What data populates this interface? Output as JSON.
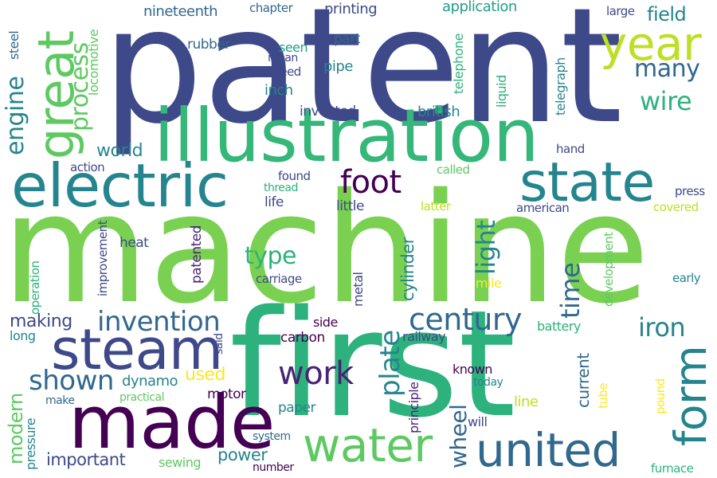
{
  "colors": {
    "background": "#ffffff",
    "palette": [
      "#3e4989",
      "#25858e",
      "#2db27d",
      "#5ec962",
      "#7ad151",
      "#440154",
      "#31688e",
      "#fde725",
      "#bddf26",
      "#482475",
      "#1f9e89",
      "#35b779"
    ]
  },
  "words": [
    {
      "id": "patent",
      "text": "patent",
      "color": "#3e4989"
    },
    {
      "id": "machine",
      "text": "machine",
      "color": "#7ad151"
    },
    {
      "id": "first",
      "text": "first",
      "color": "#2db27d"
    },
    {
      "id": "illustration",
      "text": "illustration",
      "color": "#35b779"
    },
    {
      "id": "made",
      "text": "made",
      "color": "#440154"
    },
    {
      "id": "electric",
      "text": "electric",
      "color": "#25858e"
    },
    {
      "id": "steam",
      "text": "steam",
      "color": "#3e4989"
    },
    {
      "id": "state",
      "text": "state",
      "color": "#25858e"
    },
    {
      "id": "great",
      "text": "great",
      "color": "#5ec962"
    },
    {
      "id": "year",
      "text": "year",
      "color": "#bddf26"
    },
    {
      "id": "water",
      "text": "water",
      "color": "#5ec962"
    },
    {
      "id": "united",
      "text": "united",
      "color": "#31688e"
    },
    {
      "id": "form",
      "text": "form",
      "color": "#25858e"
    },
    {
      "id": "work",
      "text": "work",
      "color": "#482475"
    },
    {
      "id": "foot",
      "text": "foot",
      "color": "#440154"
    },
    {
      "id": "invention",
      "text": "invention",
      "color": "#31688e"
    },
    {
      "id": "century",
      "text": "century",
      "color": "#31688e"
    },
    {
      "id": "process",
      "text": "process",
      "color": "#5ec962"
    },
    {
      "id": "engine",
      "text": "engine",
      "color": "#25858e"
    },
    {
      "id": "many",
      "text": "many",
      "color": "#31688e"
    },
    {
      "id": "wire",
      "text": "wire",
      "color": "#2db27d"
    },
    {
      "id": "shown",
      "text": "shown",
      "color": "#31688e"
    },
    {
      "id": "plate",
      "text": "plate",
      "color": "#25858e"
    },
    {
      "id": "iron",
      "text": "iron",
      "color": "#25858e"
    },
    {
      "id": "type",
      "text": "type",
      "color": "#2db27d"
    },
    {
      "id": "light",
      "text": "light",
      "color": "#25858e"
    },
    {
      "id": "time",
      "text": "time",
      "color": "#31688e"
    },
    {
      "id": "modern",
      "text": "modern",
      "color": "#5ec962"
    },
    {
      "id": "wheel",
      "text": "wheel",
      "color": "#31688e"
    },
    {
      "id": "field",
      "text": "field",
      "color": "#25858e"
    },
    {
      "id": "world",
      "text": "world",
      "color": "#25858e"
    },
    {
      "id": "used",
      "text": "used",
      "color": "#fde725"
    },
    {
      "id": "making",
      "text": "making",
      "color": "#3e4989"
    },
    {
      "id": "important",
      "text": "important",
      "color": "#3e4989"
    },
    {
      "id": "power",
      "text": "power",
      "color": "#25858e"
    },
    {
      "id": "cylinder",
      "text": "cylinder",
      "color": "#25858e"
    },
    {
      "id": "current",
      "text": "current",
      "color": "#31688e"
    },
    {
      "id": "dynamo",
      "text": "dynamo",
      "color": "#25858e"
    },
    {
      "id": "nineteenth",
      "text": "nineteenth",
      "color": "#31688e"
    },
    {
      "id": "printing",
      "text": "printing",
      "color": "#3e4989"
    },
    {
      "id": "application",
      "text": "application",
      "color": "#1f9e89"
    },
    {
      "id": "chapter",
      "text": "chapter",
      "color": "#31688e"
    },
    {
      "id": "large",
      "text": "large",
      "color": "#3e4989"
    },
    {
      "id": "rubber",
      "text": "rubber",
      "color": "#31688e"
    },
    {
      "id": "part",
      "text": "part",
      "color": "#31688e"
    },
    {
      "id": "seen",
      "text": "seen",
      "color": "#1f9e89"
    },
    {
      "id": "mean",
      "text": "mean",
      "color": "#3e4989"
    },
    {
      "id": "speed",
      "text": "speed",
      "color": "#3e4989"
    },
    {
      "id": "pipe",
      "text": "pipe",
      "color": "#25858e"
    },
    {
      "id": "inch",
      "text": "inch",
      "color": "#25858e"
    },
    {
      "id": "invented",
      "text": "invented",
      "color": "#3e4989"
    },
    {
      "id": "british",
      "text": "british",
      "color": "#25858e"
    },
    {
      "id": "telephone",
      "text": "telephone",
      "color": "#2db27d"
    },
    {
      "id": "liquid",
      "text": "liquid",
      "color": "#2db27d"
    },
    {
      "id": "telegraph",
      "text": "telegraph",
      "color": "#25858e"
    },
    {
      "id": "steel",
      "text": "steel",
      "color": "#31688e"
    },
    {
      "id": "locomotive",
      "text": "locomotive",
      "color": "#5ec962"
    },
    {
      "id": "hand",
      "text": "hand",
      "color": "#3e4989"
    },
    {
      "id": "action",
      "text": "action",
      "color": "#3e4989"
    },
    {
      "id": "called",
      "text": "called",
      "color": "#5ec962"
    },
    {
      "id": "found",
      "text": "found",
      "color": "#3e4989"
    },
    {
      "id": "thread",
      "text": "thread",
      "color": "#2db27d"
    },
    {
      "id": "life",
      "text": "life",
      "color": "#3e4989"
    },
    {
      "id": "little",
      "text": "little",
      "color": "#3e4989"
    },
    {
      "id": "latter",
      "text": "latter",
      "color": "#bddf26"
    },
    {
      "id": "american",
      "text": "american",
      "color": "#3e4989"
    },
    {
      "id": "press",
      "text": "press",
      "color": "#3e4989"
    },
    {
      "id": "covered",
      "text": "covered",
      "color": "#bddf26"
    },
    {
      "id": "heat",
      "text": "heat",
      "color": "#3e4989"
    },
    {
      "id": "patented",
      "text": "patented",
      "color": "#482475"
    },
    {
      "id": "improvement",
      "text": "improvement",
      "color": "#3e4989"
    },
    {
      "id": "said",
      "text": "said",
      "color": "#3e4989"
    },
    {
      "id": "carriage",
      "text": "carriage",
      "color": "#3e4989"
    },
    {
      "id": "metal",
      "text": "metal",
      "color": "#3e4989"
    },
    {
      "id": "mile",
      "text": "mile",
      "color": "#fde725"
    },
    {
      "id": "development",
      "text": "development",
      "color": "#5ec962"
    },
    {
      "id": "early",
      "text": "early",
      "color": "#25858e"
    },
    {
      "id": "operation",
      "text": "operation",
      "color": "#2db27d"
    },
    {
      "id": "battery",
      "text": "battery",
      "color": "#2db27d"
    },
    {
      "id": "long",
      "text": "long",
      "color": "#25858e"
    },
    {
      "id": "side",
      "text": "side",
      "color": "#440154"
    },
    {
      "id": "carbon",
      "text": "carbon",
      "color": "#440154"
    },
    {
      "id": "railway",
      "text": "railway",
      "color": "#3e4989"
    },
    {
      "id": "known",
      "text": "known",
      "color": "#440154"
    },
    {
      "id": "today",
      "text": "today",
      "color": "#25858e"
    },
    {
      "id": "line",
      "text": "line",
      "color": "#bddf26"
    },
    {
      "id": "principle",
      "text": "principle",
      "color": "#482475"
    },
    {
      "id": "make",
      "text": "make",
      "color": "#31688e"
    },
    {
      "id": "practical",
      "text": "practical",
      "color": "#5ec962"
    },
    {
      "id": "motor",
      "text": "motor",
      "color": "#440154"
    },
    {
      "id": "paper",
      "text": "paper",
      "color": "#25858e"
    },
    {
      "id": "will",
      "text": "will",
      "color": "#3e4989"
    },
    {
      "id": "tube",
      "text": "tube",
      "color": "#fde725"
    },
    {
      "id": "pound",
      "text": "pound",
      "color": "#fde725"
    },
    {
      "id": "pressure",
      "text": "pressure",
      "color": "#25858e"
    },
    {
      "id": "system",
      "text": "system",
      "color": "#31688e"
    },
    {
      "id": "sewing",
      "text": "sewing",
      "color": "#5ec962"
    },
    {
      "id": "number",
      "text": "number",
      "color": "#440154"
    },
    {
      "id": "furnace",
      "text": "furnace",
      "color": "#2db27d"
    }
  ]
}
